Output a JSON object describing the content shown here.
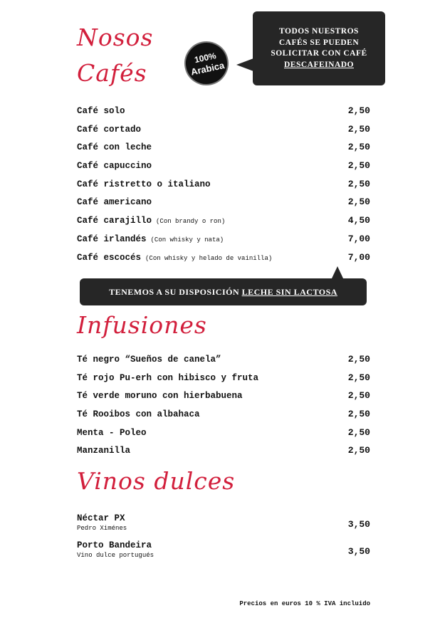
{
  "cafes": {
    "title_line1": "Nosos",
    "title_line2": "Cafés",
    "badge": {
      "line1": "100%",
      "line2": "Arabica"
    },
    "notice": {
      "lines": [
        "TODOS NUESTROS",
        "CAFÉS SE PUEDEN",
        "SOLICITAR CON CAFÉ"
      ],
      "underlined": "DESCAFEINADO"
    },
    "items": [
      {
        "name": "Café solo",
        "note": "",
        "price": "2,50"
      },
      {
        "name": "Café cortado",
        "note": "",
        "price": "2,50"
      },
      {
        "name": "Café con leche",
        "note": "",
        "price": "2,50"
      },
      {
        "name": "Café capuccino",
        "note": "",
        "price": "2,50"
      },
      {
        "name": "Café ristretto o italiano",
        "note": "",
        "price": "2,50"
      },
      {
        "name": "Café americano",
        "note": "",
        "price": "2,50"
      },
      {
        "name": "Café carajillo",
        "note": "(Con brandy o ron)",
        "price": "4,50"
      },
      {
        "name": "Café irlandés",
        "note": "(Con whisky y nata)",
        "price": "7,00"
      },
      {
        "name": "Café escocés",
        "note": "(Con whisky y helado de vainilla)",
        "price": "7,00"
      }
    ],
    "lactose_notice": {
      "text": "TENEMOS A SU DISPOSICIÓN ",
      "underlined": "LECHE SIN LACTOSA"
    }
  },
  "infusiones": {
    "title": "Infusiones",
    "items": [
      {
        "name": "Té negro “Sueños de canela”",
        "price": "2,50"
      },
      {
        "name": "Té rojo Pu-erh con hibisco y fruta",
        "price": "2,50"
      },
      {
        "name": "Té verde moruno con hierbabuena",
        "price": "2,50"
      },
      {
        "name": "Té Rooibos con albahaca",
        "price": "2,50"
      },
      {
        "name": "Menta - Poleo",
        "price": "2,50"
      },
      {
        "name": "Manzanilla",
        "price": "2,50"
      }
    ]
  },
  "vinos": {
    "title": "Vinos dulces",
    "items": [
      {
        "name": "Néctar PX",
        "sub": "Pedro Ximénes",
        "price": "3,50"
      },
      {
        "name": "Porto Bandeira",
        "sub": "Vino dulce portugués",
        "price": "3,50"
      }
    ]
  },
  "footer": "Precios en euros 10 % IVA incluido",
  "colors": {
    "heading": "#d21f3c",
    "bubble": "#262626"
  }
}
